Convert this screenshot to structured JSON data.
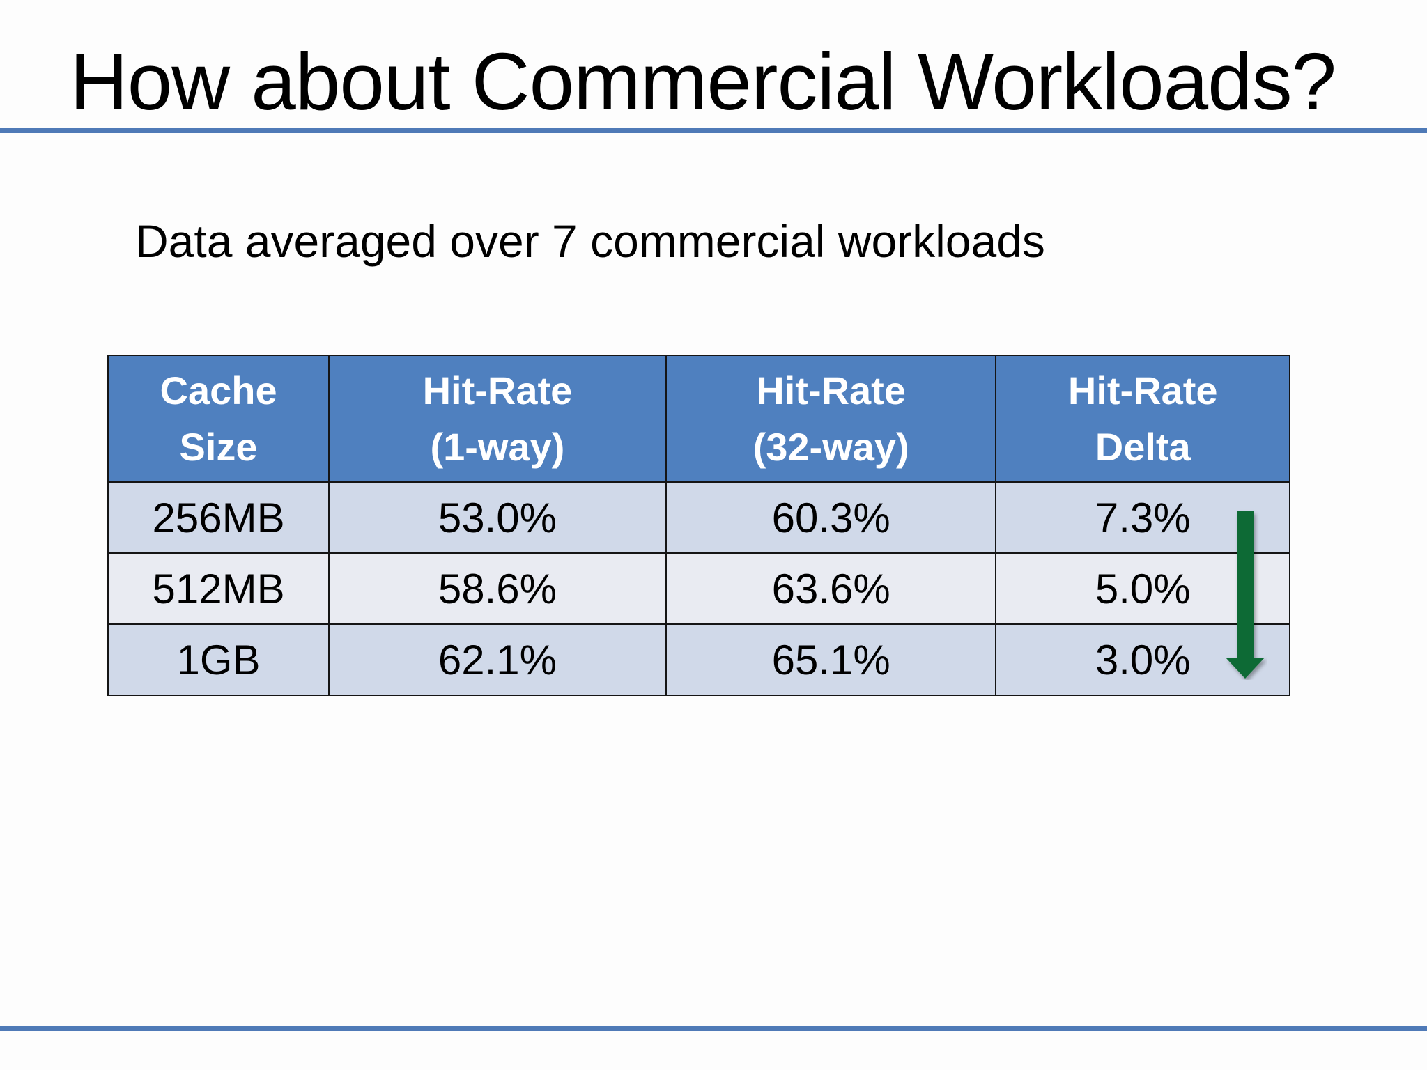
{
  "slide": {
    "title": "How about Commercial Workloads?",
    "subtitle": "Data averaged over 7 commercial workloads"
  },
  "table": {
    "headers": [
      {
        "line1": "Cache",
        "line2": "Size"
      },
      {
        "line1": "Hit-Rate",
        "line2": "(1-way)"
      },
      {
        "line1": "Hit-Rate",
        "line2": "(32-way)"
      },
      {
        "line1": "Hit-Rate",
        "line2": "Delta"
      }
    ],
    "rows": [
      [
        "256MB",
        "53.0%",
        "60.3%",
        "7.3%"
      ],
      [
        "512MB",
        "58.6%",
        "63.6%",
        "5.0%"
      ],
      [
        "1GB",
        "62.1%",
        "65.1%",
        "3.0%"
      ]
    ]
  },
  "colors": {
    "accent_rule": "#4f7ab7",
    "header_fill": "#4f80bf",
    "row_dark": "#d0d9e9",
    "row_light": "#e9ebf2",
    "arrow": "#0b6b34"
  },
  "icons": {
    "delta_arrow": "down-arrow-icon"
  }
}
